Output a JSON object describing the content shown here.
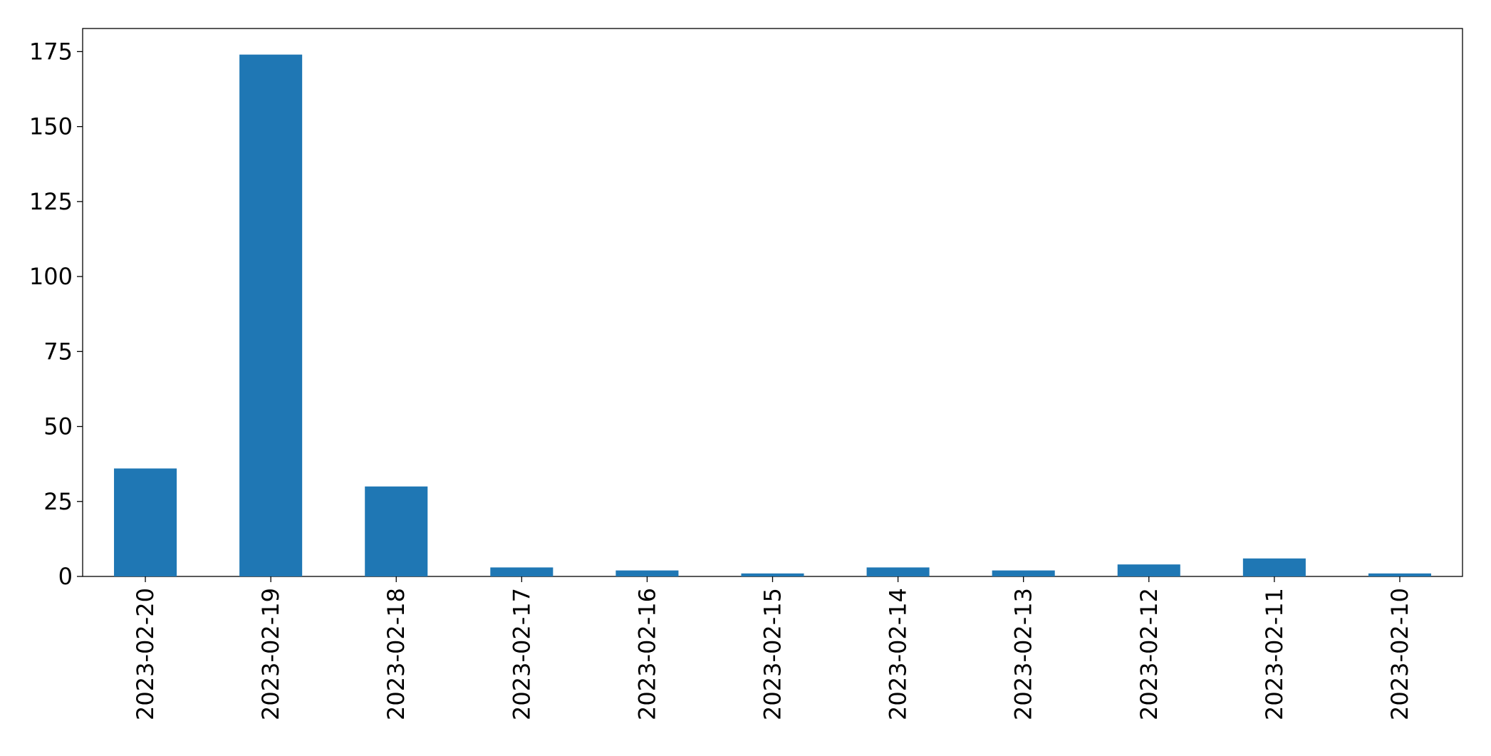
{
  "chart_data": {
    "type": "bar",
    "categories": [
      "2023-02-20",
      "2023-02-19",
      "2023-02-18",
      "2023-02-17",
      "2023-02-16",
      "2023-02-15",
      "2023-02-14",
      "2023-02-13",
      "2023-02-12",
      "2023-02-11",
      "2023-02-10"
    ],
    "values": [
      36,
      174,
      30,
      3,
      2,
      1,
      3,
      2,
      4,
      6,
      1
    ],
    "color": "#1f77b4",
    "ylim": [
      0,
      182.7
    ],
    "yticks": [
      0,
      25,
      50,
      75,
      100,
      125,
      150,
      175
    ],
    "grid": false
  }
}
